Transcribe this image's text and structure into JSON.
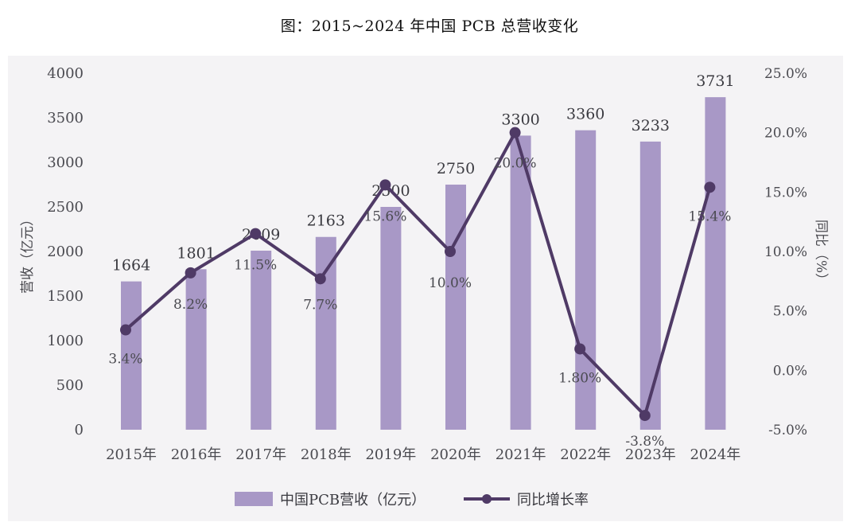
{
  "caption": "图：2015~2024 年中国 PCB 总营收变化",
  "chart_data": {
    "type": "bar",
    "categories": [
      "2015年",
      "2016年",
      "2017年",
      "2018年",
      "2019年",
      "2020年",
      "2021年",
      "2022年",
      "2023年",
      "2024年"
    ],
    "series": [
      {
        "name": "中国PCB营收（亿元）",
        "kind": "bar",
        "axis": "left",
        "values": [
          1664,
          1801,
          2009,
          2163,
          2500,
          2750,
          3300,
          3360,
          3233,
          3731
        ],
        "value_labels": [
          "1664",
          "1801",
          "2009",
          "2163",
          "2500",
          "2750",
          "3300",
          "3360",
          "3233",
          "3731"
        ]
      },
      {
        "name": "同比增长率",
        "kind": "line",
        "axis": "right",
        "values": [
          3.4,
          8.2,
          11.5,
          7.7,
          15.6,
          10.0,
          20.0,
          1.8,
          -3.8,
          15.4
        ],
        "value_labels": [
          "3.4%",
          "8.2%",
          "11.5%",
          "7.7%",
          "15.6%",
          "10.0%",
          "20.0%",
          "1.80%",
          "-3.8%",
          "15.4%"
        ]
      }
    ],
    "ylabel_left": "营收（亿元）",
    "ylabel_right": "同比（%）",
    "ylim_left": [
      0,
      4000
    ],
    "ylim_right": [
      -5,
      25
    ],
    "yticks_left": [
      "0",
      "500",
      "1000",
      "1500",
      "2000",
      "2500",
      "3000",
      "3500",
      "4000"
    ],
    "yticks_right": [
      "-5.0%",
      "0.0%",
      "5.0%",
      "10.0%",
      "15.0%",
      "20.0%",
      "25.0%"
    ],
    "legend_position": "bottom",
    "grid": false,
    "colors": {
      "bar": "#a898c6",
      "line": "#4f3a66",
      "marker": "#4f3a66"
    }
  }
}
